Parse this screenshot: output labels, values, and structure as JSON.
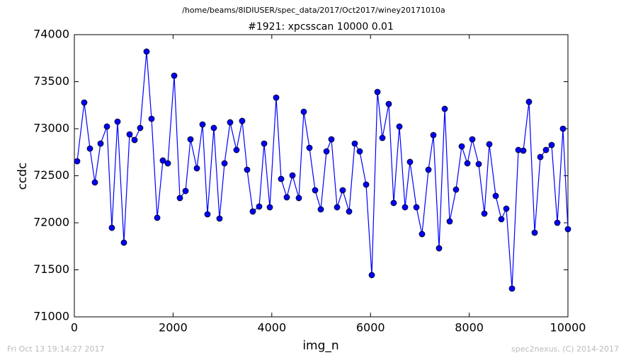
{
  "chart_data": {
    "type": "line",
    "suptitle": "/home/beams/8IDIUSER/spec_data/2017/Oct2017/winey20171010a",
    "title": "#1921: xpcsscan 10000 0.01",
    "footnotes": [
      "Fri Oct 13 19:14:27 2017",
      "spec2nexus, (C) 2014-2017"
    ],
    "x_label": "img_n",
    "y_label": "ccdc",
    "xlim": [
      0,
      10000
    ],
    "ylim": [
      71000,
      74000
    ],
    "xticks": [
      0,
      2000,
      4000,
      6000,
      8000,
      10000
    ],
    "yticks": [
      71000,
      71500,
      72000,
      72500,
      73000,
      73500,
      74000
    ],
    "x": [
      57,
      200,
      316,
      416,
      531,
      660,
      760,
      875,
      1004,
      1119,
      1220,
      1334,
      1463,
      1564,
      1679,
      1793,
      1894,
      2023,
      2138,
      2253,
      2353,
      2482,
      2597,
      2697,
      2826,
      2941,
      3042,
      3156,
      3285,
      3400,
      3500,
      3615,
      3745,
      3845,
      3960,
      4089,
      4189,
      4304,
      4419,
      4548,
      4648,
      4763,
      4878,
      4993,
      5108,
      5208,
      5323,
      5437,
      5567,
      5681,
      5782,
      5911,
      6026,
      6141,
      6241,
      6370,
      6470,
      6585,
      6700,
      6800,
      6930,
      7044,
      7174,
      7274,
      7389,
      7504,
      7604,
      7733,
      7848,
      7963,
      8063,
      8192,
      8307,
      8407,
      8537,
      8651,
      8752,
      8867,
      8996,
      9096,
      9211,
      9326,
      9441,
      9555,
      9670,
      9785,
      9900,
      10000
    ],
    "series": [
      {
        "name": "ccdc",
        "color": "#0000ff",
        "values": [
          72654,
          73278,
          72789,
          72429,
          72842,
          73023,
          71947,
          73075,
          71789,
          72940,
          72880,
          73008,
          73820,
          73105,
          72053,
          72662,
          72632,
          73564,
          72263,
          72338,
          72887,
          72579,
          73045,
          72090,
          73008,
          72045,
          72632,
          73068,
          72774,
          73083,
          72564,
          72120,
          72173,
          72842,
          72165,
          73331,
          72466,
          72271,
          72504,
          72263,
          73180,
          72797,
          72346,
          72143,
          72759,
          72887,
          72165,
          72346,
          72120,
          72842,
          72759,
          72406,
          71444,
          73391,
          72902,
          73263,
          72211,
          73023,
          72165,
          72647,
          72165,
          71880,
          72564,
          72932,
          71729,
          73211,
          72015,
          72353,
          72812,
          72632,
          72887,
          72624,
          72098,
          72835,
          72286,
          72038,
          72150,
          71301,
          72774,
          72767,
          73286,
          71895,
          72699,
          72774,
          72827,
          72000,
          73000,
          71932
        ]
      }
    ],
    "marker_color": "#0000ff"
  }
}
